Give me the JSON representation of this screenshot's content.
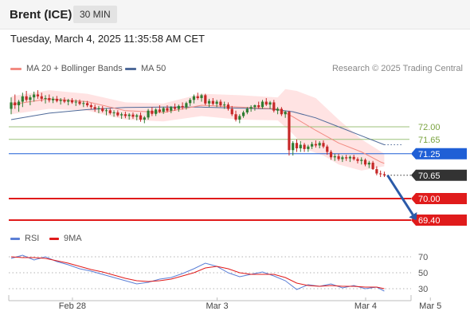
{
  "header": {
    "instrument": "Brent (ICE)",
    "timeframe": "30 MIN"
  },
  "timestamp": "Tuesday, March 4, 2025 11:35:58 AM CET",
  "copyright": "Research © 2025 Trading Central",
  "colors": {
    "bullish_candle": "#2e7d32",
    "bearish_candle": "#c62828",
    "bollinger_fill": "#ffd9d9",
    "ma20": "#f28b82",
    "ma50": "#4f6a99",
    "green_level": "#9cc27a",
    "pivot_blue": "#1f5fd6",
    "target_red": "#e01b1b",
    "current_dark": "#333333",
    "arrow": "#2b5aa8",
    "rsi": "#5b7fd6",
    "rsi_ma": "#e01b1b"
  },
  "chart_data": [
    {
      "type": "candlestick",
      "title": "",
      "legend": [
        {
          "name": "MA 20 + Bollinger Bands",
          "color": "#f28b82"
        },
        {
          "name": "MA 50",
          "color": "#4f6a99"
        }
      ],
      "legend_position": "top-left",
      "x_ticks": [
        "Feb 28",
        "Mar 3",
        "Mar 4",
        "Mar 5"
      ],
      "x_tick_index": [
        14,
        52,
        91,
        108
      ],
      "y_range": [
        69.2,
        73.2
      ],
      "grid": false,
      "candles": [
        [
          72.5,
          72.82,
          72.35,
          72.68
        ],
        [
          72.68,
          72.9,
          72.5,
          72.6
        ],
        [
          72.6,
          72.75,
          72.42,
          72.7
        ],
        [
          72.7,
          72.95,
          72.55,
          72.85
        ],
        [
          72.85,
          73.0,
          72.7,
          72.75
        ],
        [
          72.75,
          72.88,
          72.6,
          72.82
        ],
        [
          72.82,
          72.98,
          72.7,
          72.9
        ],
        [
          72.9,
          73.02,
          72.78,
          72.85
        ],
        [
          72.85,
          72.95,
          72.7,
          72.78
        ],
        [
          72.78,
          72.88,
          72.65,
          72.8
        ],
        [
          72.8,
          72.9,
          72.68,
          72.74
        ],
        [
          72.74,
          72.84,
          72.66,
          72.78
        ],
        [
          72.78,
          72.86,
          72.68,
          72.72
        ],
        [
          72.72,
          72.8,
          72.62,
          72.75
        ],
        [
          72.75,
          72.82,
          72.66,
          72.7
        ],
        [
          72.7,
          72.78,
          72.6,
          72.74
        ],
        [
          72.74,
          72.8,
          72.64,
          72.68
        ],
        [
          72.68,
          72.76,
          72.58,
          72.7
        ],
        [
          72.7,
          72.76,
          72.6,
          72.64
        ],
        [
          72.64,
          72.72,
          72.55,
          72.66
        ],
        [
          72.66,
          72.72,
          72.55,
          72.6
        ],
        [
          72.6,
          72.66,
          72.48,
          72.55
        ],
        [
          72.55,
          72.62,
          72.42,
          72.5
        ],
        [
          72.5,
          72.58,
          72.38,
          72.52
        ],
        [
          72.52,
          72.58,
          72.4,
          72.44
        ],
        [
          72.44,
          72.52,
          72.32,
          72.46
        ],
        [
          72.46,
          72.52,
          72.34,
          72.38
        ],
        [
          72.38,
          72.46,
          72.28,
          72.4
        ],
        [
          72.4,
          72.46,
          72.28,
          72.32
        ],
        [
          72.32,
          72.4,
          72.22,
          72.35
        ],
        [
          72.35,
          72.42,
          72.24,
          72.3
        ],
        [
          72.3,
          72.38,
          72.2,
          72.34
        ],
        [
          72.34,
          72.4,
          72.22,
          72.28
        ],
        [
          72.28,
          72.36,
          72.18,
          72.32
        ],
        [
          72.32,
          72.4,
          72.14,
          72.2
        ],
        [
          72.2,
          72.3,
          72.1,
          72.26
        ],
        [
          72.26,
          72.5,
          72.2,
          72.45
        ],
        [
          72.45,
          72.55,
          72.3,
          72.36
        ],
        [
          72.36,
          72.52,
          72.3,
          72.48
        ],
        [
          72.48,
          72.6,
          72.38,
          72.42
        ],
        [
          72.42,
          72.56,
          72.36,
          72.52
        ],
        [
          72.52,
          72.6,
          72.4,
          72.45
        ],
        [
          72.45,
          72.58,
          72.38,
          72.55
        ],
        [
          72.55,
          72.65,
          72.45,
          72.5
        ],
        [
          72.5,
          72.62,
          72.42,
          72.58
        ],
        [
          72.58,
          72.68,
          72.48,
          72.54
        ],
        [
          72.54,
          72.7,
          72.48,
          72.66
        ],
        [
          72.66,
          72.8,
          72.58,
          72.75
        ],
        [
          72.75,
          72.9,
          72.65,
          72.85
        ],
        [
          72.85,
          72.95,
          72.75,
          72.8
        ],
        [
          72.8,
          72.92,
          72.7,
          72.88
        ],
        [
          72.88,
          72.92,
          72.6,
          72.65
        ],
        [
          72.65,
          72.78,
          72.55,
          72.72
        ],
        [
          72.72,
          72.8,
          72.6,
          72.64
        ],
        [
          72.64,
          72.75,
          72.55,
          72.7
        ],
        [
          72.7,
          72.76,
          72.55,
          72.6
        ],
        [
          72.6,
          72.7,
          72.5,
          72.62
        ],
        [
          72.62,
          72.68,
          72.45,
          72.5
        ],
        [
          72.5,
          72.58,
          72.3,
          72.35
        ],
        [
          72.35,
          72.45,
          72.15,
          72.2
        ],
        [
          72.2,
          72.35,
          72.1,
          72.3
        ],
        [
          72.3,
          72.45,
          72.25,
          72.4
        ],
        [
          72.4,
          72.55,
          72.35,
          72.5
        ],
        [
          72.5,
          72.6,
          72.42,
          72.55
        ],
        [
          72.55,
          72.62,
          72.45,
          72.6
        ],
        [
          72.6,
          72.7,
          72.5,
          72.55
        ],
        [
          72.55,
          72.75,
          72.5,
          72.7
        ],
        [
          72.7,
          72.8,
          72.58,
          72.62
        ],
        [
          72.62,
          72.72,
          72.5,
          72.68
        ],
        [
          72.68,
          72.75,
          72.4,
          72.45
        ],
        [
          72.45,
          72.55,
          72.35,
          72.5
        ],
        [
          72.5,
          72.55,
          72.3,
          72.35
        ],
        [
          72.35,
          72.45,
          72.25,
          72.42
        ],
        [
          72.42,
          72.45,
          71.2,
          71.35
        ],
        [
          71.35,
          71.6,
          71.2,
          71.55
        ],
        [
          71.55,
          71.65,
          71.3,
          71.4
        ],
        [
          71.4,
          71.6,
          71.3,
          71.5
        ],
        [
          71.5,
          71.55,
          71.3,
          71.38
        ],
        [
          71.38,
          71.5,
          71.3,
          71.45
        ],
        [
          71.45,
          71.58,
          71.38,
          71.52
        ],
        [
          71.52,
          71.62,
          71.42,
          71.48
        ],
        [
          71.48,
          71.6,
          71.4,
          71.55
        ],
        [
          71.55,
          71.62,
          71.4,
          71.45
        ],
        [
          71.45,
          71.5,
          71.22,
          71.3
        ],
        [
          71.3,
          71.35,
          71.08,
          71.15
        ],
        [
          71.15,
          71.25,
          71.05,
          71.18
        ],
        [
          71.18,
          71.25,
          71.05,
          71.1
        ],
        [
          71.1,
          71.2,
          71.02,
          71.15
        ],
        [
          71.15,
          71.22,
          71.05,
          71.12
        ],
        [
          71.12,
          71.2,
          71.02,
          71.16
        ],
        [
          71.16,
          71.22,
          71.06,
          71.1
        ],
        [
          71.1,
          71.15,
          70.98,
          71.05
        ],
        [
          71.05,
          71.15,
          70.95,
          71.08
        ],
        [
          71.08,
          71.12,
          70.9,
          70.95
        ],
        [
          70.95,
          71.05,
          70.85,
          71.0
        ],
        [
          71.0,
          71.05,
          70.8,
          70.82
        ],
        [
          70.82,
          70.9,
          70.65,
          70.7
        ],
        [
          70.7,
          70.78,
          70.6,
          70.68
        ],
        [
          70.68,
          70.75,
          70.6,
          70.65
        ]
      ],
      "ma20": [
        [
          0,
          72.62
        ],
        [
          10,
          72.78
        ],
        [
          20,
          72.7
        ],
        [
          30,
          72.45
        ],
        [
          40,
          72.4
        ],
        [
          50,
          72.6
        ],
        [
          60,
          72.55
        ],
        [
          70,
          72.5
        ],
        [
          74,
          72.28
        ],
        [
          80,
          71.9
        ],
        [
          86,
          71.55
        ],
        [
          92,
          71.3
        ],
        [
          97,
          71.02
        ],
        [
          98,
          70.98
        ]
      ],
      "bollinger_upper": [
        [
          0,
          72.85
        ],
        [
          10,
          73.02
        ],
        [
          20,
          72.92
        ],
        [
          30,
          72.68
        ],
        [
          40,
          72.65
        ],
        [
          50,
          72.92
        ],
        [
          60,
          72.88
        ],
        [
          70,
          72.82
        ],
        [
          72,
          73.05
        ],
        [
          75,
          73.0
        ],
        [
          80,
          72.8
        ],
        [
          86,
          72.2
        ],
        [
          92,
          71.65
        ],
        [
          98,
          71.25
        ]
      ],
      "bollinger_lower": [
        [
          0,
          72.35
        ],
        [
          10,
          72.5
        ],
        [
          20,
          72.45
        ],
        [
          30,
          72.2
        ],
        [
          40,
          72.15
        ],
        [
          50,
          72.3
        ],
        [
          60,
          72.2
        ],
        [
          70,
          72.18
        ],
        [
          74,
          71.8
        ],
        [
          78,
          71.35
        ],
        [
          82,
          71.2
        ],
        [
          86,
          70.95
        ],
        [
          92,
          70.78
        ],
        [
          98,
          70.9
        ]
      ],
      "ma50": [
        [
          0,
          72.2
        ],
        [
          10,
          72.38
        ],
        [
          20,
          72.48
        ],
        [
          30,
          72.54
        ],
        [
          40,
          72.55
        ],
        [
          50,
          72.55
        ],
        [
          60,
          72.52
        ],
        [
          68,
          72.5
        ],
        [
          74,
          72.42
        ],
        [
          80,
          72.25
        ],
        [
          86,
          72.0
        ],
        [
          92,
          71.75
        ],
        [
          98,
          71.5
        ]
      ],
      "ma50_projection": [
        [
          98,
          71.5
        ],
        [
          103,
          71.5
        ]
      ],
      "levels": [
        {
          "value": 72.0,
          "label": "72.00",
          "style": "green-line"
        },
        {
          "value": 71.65,
          "label": "71.65",
          "style": "green-line"
        },
        {
          "value": 71.25,
          "label": "71.25",
          "style": "blue-line-tag"
        },
        {
          "value": 70.65,
          "label": "70.65",
          "style": "current-price-dark-tag"
        },
        {
          "value": 70.0,
          "label": "70.00",
          "style": "red-line-tag"
        },
        {
          "value": 69.4,
          "label": "69.40",
          "style": "red-line-tag"
        }
      ],
      "forecast_arrow": {
        "from": [
          98,
          70.65
        ],
        "to": [
          106,
          69.4
        ]
      }
    },
    {
      "type": "line",
      "title": "",
      "legend": [
        {
          "name": "RSI",
          "color": "#5b7fd6"
        },
        {
          "name": "9MA",
          "color": "#e01b1b"
        }
      ],
      "legend_position": "top-left",
      "y_range": [
        20,
        80
      ],
      "y_ticks": [
        70,
        50,
        30
      ],
      "series": [
        {
          "name": "RSI",
          "values": [
            [
              0,
              68
            ],
            [
              3,
              72
            ],
            [
              6,
              66
            ],
            [
              9,
              70
            ],
            [
              12,
              64
            ],
            [
              15,
              60
            ],
            [
              18,
              55
            ],
            [
              21,
              52
            ],
            [
              24,
              48
            ],
            [
              27,
              44
            ],
            [
              30,
              40
            ],
            [
              33,
              36
            ],
            [
              36,
              38
            ],
            [
              39,
              42
            ],
            [
              42,
              44
            ],
            [
              45,
              49
            ],
            [
              48,
              55
            ],
            [
              51,
              62
            ],
            [
              54,
              58
            ],
            [
              57,
              50
            ],
            [
              60,
              45
            ],
            [
              63,
              48
            ],
            [
              66,
              51
            ],
            [
              69,
              46
            ],
            [
              72,
              40
            ],
            [
              75,
              29
            ],
            [
              78,
              35
            ],
            [
              81,
              33
            ],
            [
              84,
              36
            ],
            [
              87,
              31
            ],
            [
              90,
              34
            ],
            [
              93,
              30
            ],
            [
              96,
              32
            ],
            [
              98,
              27
            ]
          ]
        },
        {
          "name": "9MA",
          "values": [
            [
              0,
              70
            ],
            [
              3,
              69
            ],
            [
              6,
              69
            ],
            [
              9,
              68
            ],
            [
              12,
              65
            ],
            [
              15,
              62
            ],
            [
              18,
              58
            ],
            [
              21,
              54
            ],
            [
              24,
              51
            ],
            [
              27,
              47
            ],
            [
              30,
              43
            ],
            [
              33,
              40
            ],
            [
              36,
              39
            ],
            [
              39,
              40
            ],
            [
              42,
              42
            ],
            [
              45,
              46
            ],
            [
              48,
              50
            ],
            [
              51,
              56
            ],
            [
              54,
              58
            ],
            [
              57,
              55
            ],
            [
              60,
              50
            ],
            [
              63,
              48
            ],
            [
              66,
              48
            ],
            [
              69,
              48
            ],
            [
              72,
              44
            ],
            [
              75,
              37
            ],
            [
              78,
              34
            ],
            [
              81,
              33
            ],
            [
              84,
              34
            ],
            [
              87,
              33
            ],
            [
              90,
              33
            ],
            [
              93,
              32
            ],
            [
              96,
              32
            ],
            [
              98,
              30
            ]
          ]
        }
      ]
    }
  ]
}
